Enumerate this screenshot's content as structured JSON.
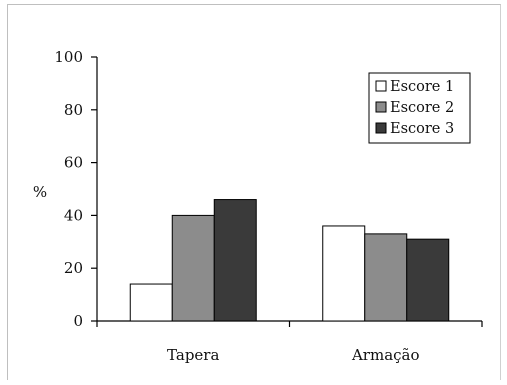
{
  "chart_data": {
    "type": "bar",
    "title": "",
    "xlabel": "",
    "ylabel": "%",
    "ylim": [
      0,
      100
    ],
    "yticks": [
      0,
      20,
      40,
      60,
      80,
      100
    ],
    "categories": [
      "Tapera",
      "Armação"
    ],
    "series": [
      {
        "name": "Escore 1",
        "values": [
          14,
          36
        ],
        "color": "#ffffff"
      },
      {
        "name": "Escore 2",
        "values": [
          40,
          33
        ],
        "color": "#8c8c8c"
      },
      {
        "name": "Escore 3",
        "values": [
          46,
          31
        ],
        "color": "#3a3a3a"
      }
    ],
    "grid": false,
    "legend_position": "top-right"
  }
}
